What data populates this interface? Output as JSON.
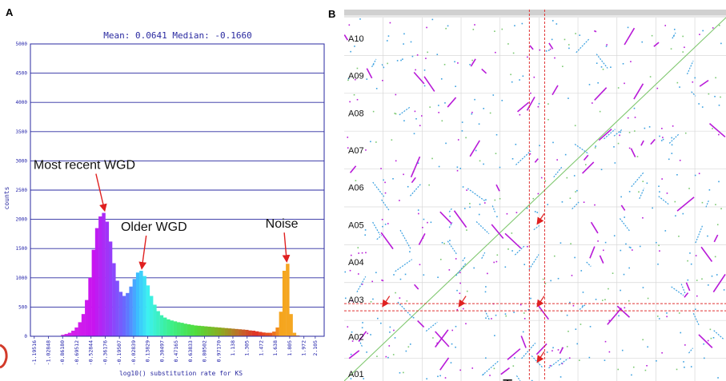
{
  "panels": {
    "a_letter": "A",
    "b_letter": "B"
  },
  "chart_data": [
    {
      "type": "bar",
      "panel": "A",
      "title": "Mean: 0.0641 Median: -0.1660",
      "xlabel": "log10() substitution rate for KS",
      "ylabel": "counts",
      "ylim": [
        0,
        5000
      ],
      "yticks": [
        "0",
        "500",
        "1000",
        "1500",
        "2000",
        "2500",
        "3000",
        "3500",
        "4000",
        "4500",
        "5000"
      ],
      "xlim": [
        -1.24,
        2.21
      ],
      "xticks": [
        "-1.19516",
        "-1.02848",
        "-0.86180",
        "-0.69512",
        "-0.52844",
        "-0.36176",
        "-0.19507",
        "-0.02839",
        "0.13829",
        "0.30497",
        "0.47165",
        "0.63833",
        "0.80502",
        "0.97170",
        "1.138",
        "1.305",
        "1.472",
        "1.638",
        "1.805",
        "1.972",
        "2.105"
      ],
      "grid": "horizontal",
      "x": [
        -0.86,
        -0.82,
        -0.78,
        -0.74,
        -0.7,
        -0.66,
        -0.62,
        -0.58,
        -0.54,
        -0.5,
        -0.46,
        -0.42,
        -0.38,
        -0.34,
        -0.3,
        -0.26,
        -0.22,
        -0.18,
        -0.14,
        -0.1,
        -0.06,
        -0.02,
        0.02,
        0.06,
        0.1,
        0.14,
        0.18,
        0.22,
        0.26,
        0.3,
        0.34,
        0.38,
        0.42,
        0.46,
        0.5,
        0.54,
        0.58,
        0.62,
        0.66,
        0.7,
        0.74,
        0.78,
        0.82,
        0.86,
        0.9,
        0.94,
        0.98,
        1.02,
        1.06,
        1.1,
        1.14,
        1.18,
        1.22,
        1.26,
        1.3,
        1.34,
        1.38,
        1.42,
        1.46,
        1.5,
        1.54,
        1.58,
        1.62,
        1.66,
        1.7,
        1.74,
        1.78,
        1.82,
        1.86,
        1.9,
        1.94
      ],
      "values": [
        25,
        40,
        60,
        95,
        150,
        240,
        380,
        620,
        1000,
        1480,
        1850,
        2050,
        2110,
        1960,
        1620,
        1250,
        950,
        760,
        690,
        740,
        850,
        980,
        1090,
        1120,
        1030,
        870,
        690,
        540,
        430,
        360,
        320,
        290,
        270,
        255,
        240,
        230,
        215,
        205,
        195,
        185,
        180,
        175,
        170,
        165,
        160,
        155,
        150,
        145,
        140,
        135,
        130,
        125,
        120,
        115,
        110,
        100,
        95,
        85,
        75,
        65,
        60,
        60,
        80,
        150,
        420,
        1120,
        1240,
        380,
        60,
        15,
        5
      ],
      "bin_width": 0.04,
      "annotations": [
        {
          "text": "Most recent WGD",
          "x": -0.38,
          "y": 2110
        },
        {
          "text": "Older WGD",
          "x": 0.06,
          "y": 1120
        },
        {
          "text": "Noise",
          "x": 1.76,
          "y": 1240
        }
      ]
    },
    {
      "type": "scatter",
      "panel": "B",
      "plot_kind": "dot plot",
      "y_categories": [
        "A10",
        "A09",
        "A08",
        "A07",
        "A06",
        "A05",
        "A04",
        "A03",
        "A02",
        "A01"
      ],
      "diagonal": "y = x",
      "highlight_lines": {
        "vertical": [
          0.485,
          0.525
        ],
        "horizontal": [
          0.193,
          0.213
        ]
      },
      "arrows_at": [
        [
          0.505,
          0.43
        ],
        [
          0.505,
          0.203
        ],
        [
          0.3,
          0.203
        ],
        [
          0.1,
          0.203
        ],
        [
          0.505,
          0.05
        ]
      ],
      "colors": {
        "magenta": "#b81ad8",
        "blue": "#3aa0e0",
        "green": "#7ac870",
        "red": "#e03030"
      }
    }
  ],
  "partial_caption": "T"
}
